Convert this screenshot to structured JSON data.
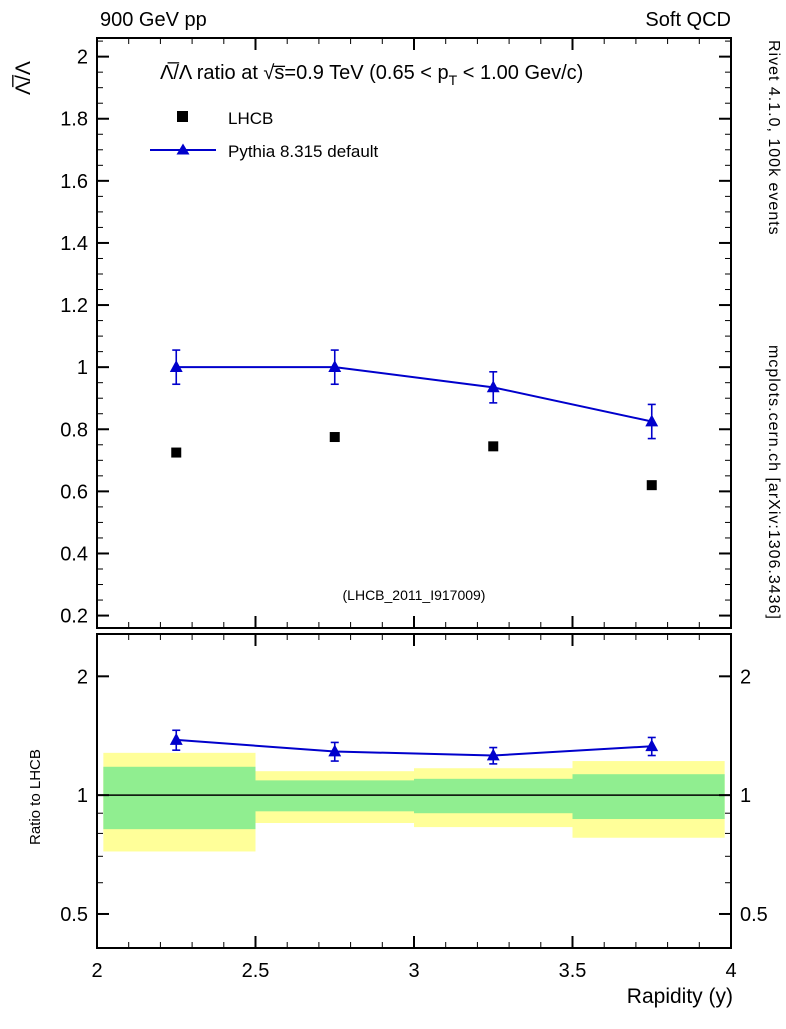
{
  "header": {
    "left_label": "900 GeV pp",
    "right_label": "Soft QCD"
  },
  "side_notes": {
    "top_vertical": "Rivet 4.1.0, 100k events",
    "bottom_vertical": "mcplots.cern.ch [arXiv:1306.3436]"
  },
  "chart_data": {
    "type": "line",
    "title_pre": "Λ̅/Λ ratio at √s̅=0.9 TeV (0.65 < p",
    "title_sub": "T",
    "title_post": " < 1.00 Gev/c)",
    "ylabel": "Λ̅/Λ",
    "xlabel": "Rapidity (y)",
    "watermark": "(LHCB_2011_I917009)",
    "x": [
      2.25,
      2.75,
      3.25,
      3.75
    ],
    "xlim": [
      2,
      4
    ],
    "xticks": [
      2,
      2.5,
      3,
      3.5,
      4
    ],
    "x_minor_step": 0.1,
    "main_panel": {
      "ylim": [
        0.16,
        2.06
      ],
      "yticks": [
        0.2,
        0.4,
        0.6,
        0.8,
        1,
        1.2,
        1.4,
        1.6,
        1.8,
        2
      ],
      "y_minor_step": 0.05,
      "series": [
        {
          "name": "LHCB",
          "marker": "square",
          "color": "#000000",
          "draw_line": false,
          "values": [
            0.725,
            0.775,
            0.745,
            0.62
          ]
        },
        {
          "name": "Pythia 8.315 default",
          "marker": "triangle",
          "color": "#0000cc",
          "draw_line": true,
          "values": [
            1.0,
            1.0,
            0.935,
            0.825
          ],
          "errors": [
            0.055,
            0.055,
            0.05,
            0.055
          ]
        }
      ]
    },
    "ratio_panel": {
      "ylabel": "Ratio to LHCB",
      "scale": "log",
      "ylim": [
        0.41,
        2.56
      ],
      "yticks": [
        0.5,
        1,
        2
      ],
      "y_minor": [
        0.6,
        0.7,
        0.8,
        0.9
      ],
      "reference_line": 1,
      "ratio_values": [
        1.38,
        1.29,
        1.26,
        1.33
      ],
      "ratio_errors": [
        0.08,
        0.07,
        0.06,
        0.07
      ],
      "bands": [
        {
          "x0": 2.02,
          "x1": 2.5,
          "outer": [
            0.72,
            1.28
          ],
          "inner": [
            0.82,
            1.18
          ]
        },
        {
          "x0": 2.5,
          "x1": 3.0,
          "outer": [
            0.85,
            1.15
          ],
          "inner": [
            0.91,
            1.09
          ]
        },
        {
          "x0": 3.0,
          "x1": 3.5,
          "outer": [
            0.83,
            1.17
          ],
          "inner": [
            0.9,
            1.1
          ]
        },
        {
          "x0": 3.5,
          "x1": 3.98,
          "outer": [
            0.78,
            1.22
          ],
          "inner": [
            0.87,
            1.13
          ]
        }
      ]
    },
    "colors": {
      "outer_band": "#ffff99",
      "inner_band": "#90ee90",
      "pythia_blue": "#0000cc",
      "lhcb_black": "#000000",
      "frame": "#000000",
      "watermark_gray": "#b3b3b3",
      "side_note_gray": "#999999"
    }
  }
}
